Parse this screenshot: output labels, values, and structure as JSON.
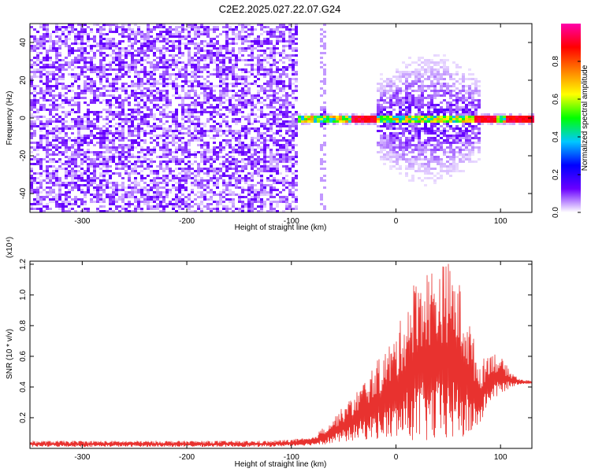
{
  "title": "C2E2.2025.027.22.07.G24",
  "chart_data": [
    {
      "type": "heatmap",
      "name": "spectrogram",
      "xlabel": "Height of straight line (km)",
      "ylabel": "Frequency (Hz)",
      "xlim": [
        -350,
        130
      ],
      "ylim": [
        -50,
        50
      ],
      "xticks": [
        -300,
        -200,
        -100,
        0,
        100
      ],
      "yticks": [
        -40,
        -20,
        0,
        20,
        40
      ],
      "grid": false,
      "colorbar": {
        "label": "Normalized spectral amplitude",
        "range": [
          0.0,
          1.0
        ],
        "ticks": [
          "0.0",
          "0.2",
          "0.4",
          "0.6",
          "0.8"
        ],
        "tick_values": [
          0.0,
          0.2,
          0.4,
          0.6,
          0.8
        ],
        "colormap": [
          "#ffffff",
          "#6a00ff",
          "#0000ff",
          "#00c8ff",
          "#00ff00",
          "#ffff00",
          "#ff8000",
          "#ff0000",
          "#ff00aa"
        ]
      },
      "regions": [
        {
          "x_range": [
            -350,
            -95
          ],
          "description": "broadband noise, amplitude ~0.1"
        },
        {
          "x_range": [
            -95,
            130
          ],
          "peak_frequency": 0,
          "peak_amplitude": 0.9
        }
      ]
    },
    {
      "type": "area",
      "name": "snr",
      "xlabel": "Height of straight line (km)",
      "ylabel": "SNR (10 * v/v)",
      "y_multiplier": "(x10⁴)",
      "xlim": [
        -350,
        130
      ],
      "ylim": [
        0,
        1.22
      ],
      "xticks": [
        -300,
        -200,
        -100,
        0,
        100
      ],
      "yticks": [
        0.2,
        0.4,
        0.6,
        0.8,
        1.0,
        1.2
      ],
      "ytick_labels": [
        "0.2",
        "0.4",
        "0.6",
        "0.8",
        "1.0",
        "1.2"
      ],
      "grid": false,
      "color": "#e8322f",
      "envelope": {
        "x": [
          -350,
          -120,
          -80,
          -60,
          -40,
          -20,
          0,
          10,
          20,
          30,
          40,
          50,
          60,
          70,
          80,
          90,
          100,
          110,
          120,
          130
        ],
        "min": [
          0.01,
          0.01,
          0.02,
          0.03,
          0.05,
          0.06,
          0.05,
          0.05,
          0.04,
          0.03,
          0.03,
          0.04,
          0.05,
          0.06,
          0.15,
          0.3,
          0.35,
          0.4,
          0.42,
          0.42
        ],
        "max": [
          0.05,
          0.05,
          0.07,
          0.2,
          0.35,
          0.55,
          0.75,
          0.95,
          1.15,
          1.18,
          1.2,
          1.22,
          1.1,
          0.85,
          0.55,
          0.65,
          0.6,
          0.5,
          0.45,
          0.44
        ]
      }
    }
  ]
}
